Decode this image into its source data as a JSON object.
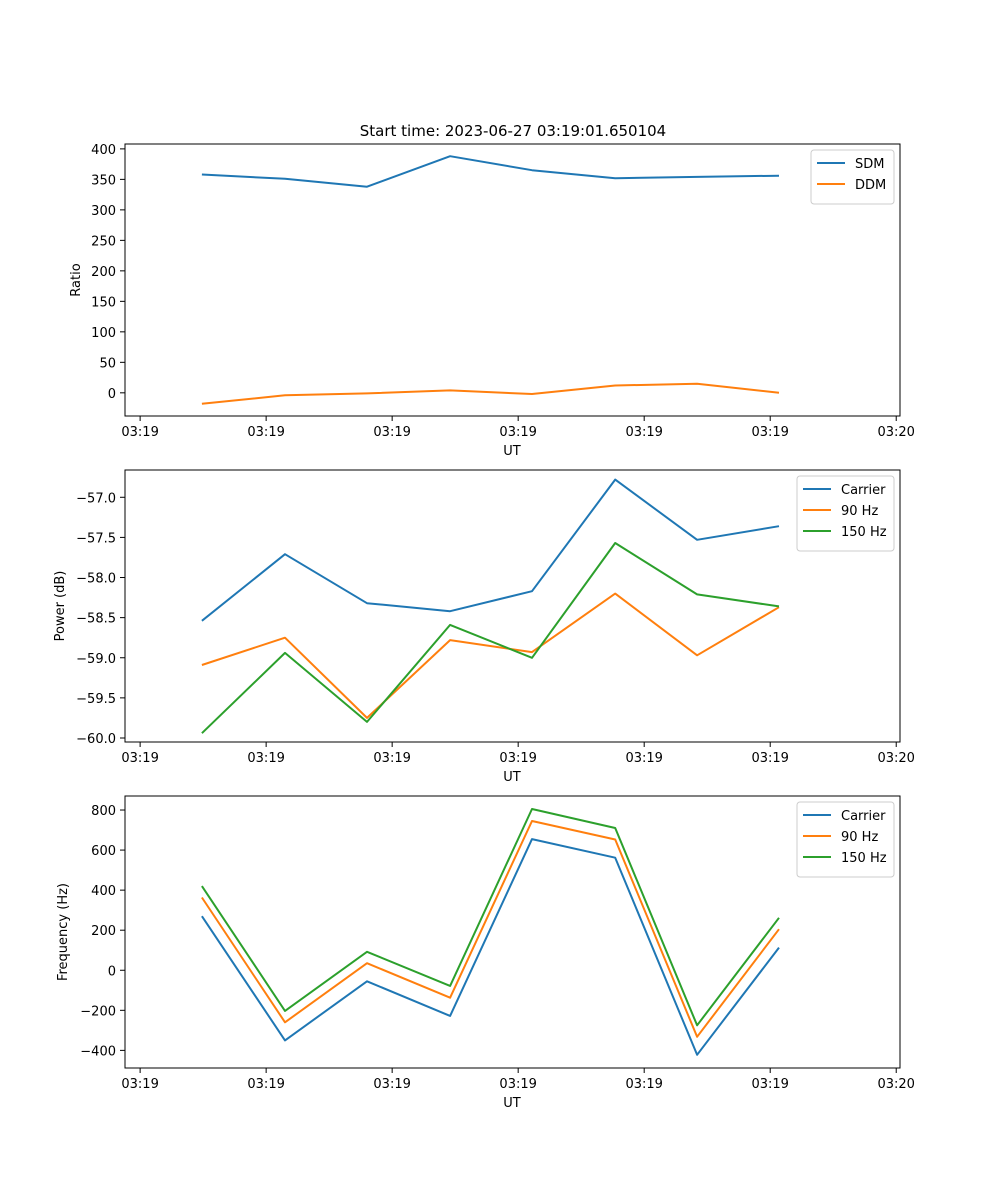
{
  "title": "Start time: 2023-06-27 03:19:01.650104",
  "chart_data": [
    {
      "type": "line",
      "xlabel": "UT",
      "ylabel": "Ratio",
      "x_tick_labels": [
        "03:19",
        "03:19",
        "03:19",
        "03:19",
        "03:19",
        "03:19",
        "03:20"
      ],
      "x_tick_positions": [
        0,
        1,
        2,
        3,
        4,
        5,
        6
      ],
      "xlim": [
        -0.12,
        6.03
      ],
      "yticks": [
        0,
        50,
        100,
        150,
        200,
        250,
        300,
        350,
        400
      ],
      "ylim": [
        -38,
        408
      ],
      "legend": "top-right",
      "x": [
        0.49,
        1.15,
        1.8,
        2.46,
        3.11,
        3.77,
        4.42,
        5.07
      ],
      "series": [
        {
          "name": "SDM",
          "color": "#1f77b4",
          "values": [
            358,
            351,
            338,
            388,
            365,
            352,
            354,
            356
          ]
        },
        {
          "name": "DDM",
          "color": "#ff7f0e",
          "values": [
            -18,
            -4,
            -1,
            4,
            -2,
            12,
            15,
            0
          ]
        }
      ]
    },
    {
      "type": "line",
      "xlabel": "UT",
      "ylabel": "Power (dB)",
      "x_tick_labels": [
        "03:19",
        "03:19",
        "03:19",
        "03:19",
        "03:19",
        "03:19",
        "03:20"
      ],
      "x_tick_positions": [
        0,
        1,
        2,
        3,
        4,
        5,
        6
      ],
      "xlim": [
        -0.12,
        6.03
      ],
      "yticks": [
        -60.0,
        -59.5,
        -59.0,
        -58.5,
        -58.0,
        -57.5,
        -57.0
      ],
      "ytick_labels": [
        "−60.0",
        "−59.5",
        "−59.0",
        "−58.5",
        "−58.0",
        "−57.5",
        "−57.0"
      ],
      "ylim": [
        -60.05,
        -56.66
      ],
      "legend": "top-right",
      "x": [
        0.49,
        1.15,
        1.8,
        2.46,
        3.11,
        3.77,
        4.42,
        5.07
      ],
      "series": [
        {
          "name": "Carrier",
          "color": "#1f77b4",
          "values": [
            -58.54,
            -57.71,
            -58.32,
            -58.42,
            -58.17,
            -56.78,
            -57.53,
            -57.36
          ]
        },
        {
          "name": "90 Hz",
          "color": "#ff7f0e",
          "values": [
            -59.09,
            -58.75,
            -59.75,
            -58.78,
            -58.93,
            -58.2,
            -58.97,
            -58.37
          ]
        },
        {
          "name": "150 Hz",
          "color": "#2ca02c",
          "values": [
            -59.94,
            -58.94,
            -59.8,
            -58.59,
            -59.0,
            -57.57,
            -58.21,
            -58.36
          ]
        }
      ]
    },
    {
      "type": "line",
      "xlabel": "UT",
      "ylabel": "Frequency (Hz)",
      "x_tick_labels": [
        "03:19",
        "03:19",
        "03:19",
        "03:19",
        "03:19",
        "03:19",
        "03:20"
      ],
      "x_tick_positions": [
        0,
        1,
        2,
        3,
        4,
        5,
        6
      ],
      "xlim": [
        -0.12,
        6.03
      ],
      "yticks": [
        -400,
        -200,
        0,
        200,
        400,
        600,
        800
      ],
      "ytick_labels": [
        "−400",
        "−200",
        "0",
        "200",
        "400",
        "600",
        "800"
      ],
      "ylim": [
        -488,
        870
      ],
      "legend": "top-right",
      "x": [
        0.49,
        1.15,
        1.8,
        2.46,
        3.11,
        3.77,
        4.42,
        5.07
      ],
      "series": [
        {
          "name": "Carrier",
          "color": "#1f77b4",
          "values": [
            270,
            -350,
            -55,
            -228,
            655,
            562,
            -422,
            113
          ]
        },
        {
          "name": "90 Hz",
          "color": "#ff7f0e",
          "values": [
            363,
            -260,
            35,
            -137,
            745,
            653,
            -332,
            205
          ]
        },
        {
          "name": "150 Hz",
          "color": "#2ca02c",
          "values": [
            420,
            -203,
            92,
            -78,
            805,
            710,
            -275,
            262
          ]
        }
      ]
    }
  ]
}
